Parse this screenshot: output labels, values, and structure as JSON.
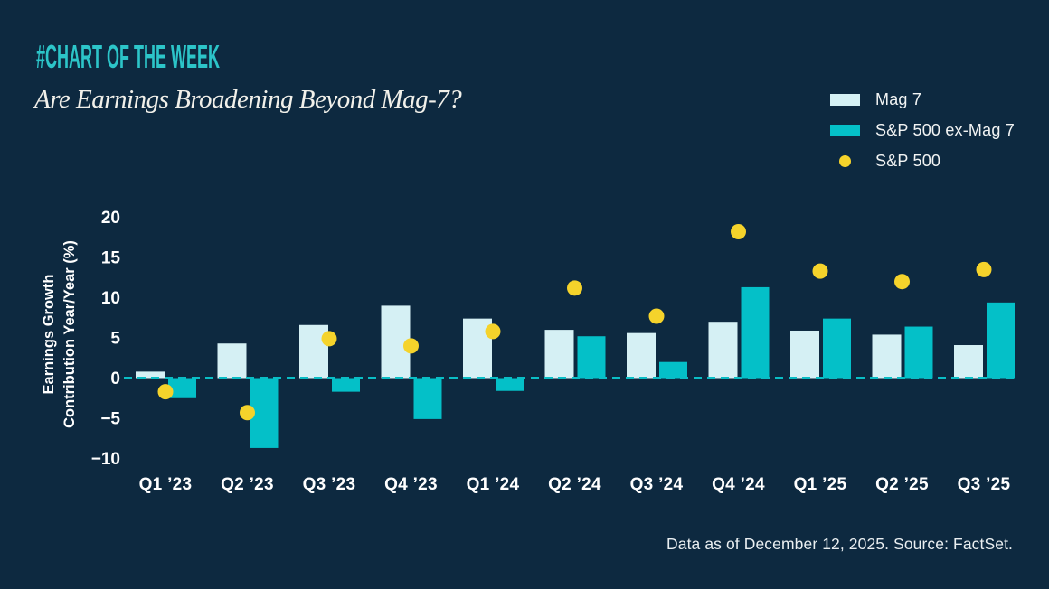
{
  "page": {
    "background": "#0D2940",
    "accent": "#2CC5C9"
  },
  "header": {
    "kicker": "#CHART OF THE WEEK",
    "title": "Are Earnings Broadening Beyond Mag-7?"
  },
  "legend": {
    "position": "top-right",
    "items": [
      {
        "label": "Mag 7",
        "swatch": "rect",
        "color": "#D5F0F4"
      },
      {
        "label": "S&P 500 ex-Mag 7",
        "swatch": "rect",
        "color": "#04C0C8"
      },
      {
        "label": "S&P 500",
        "swatch": "dot",
        "color": "#F5D32B"
      }
    ]
  },
  "chart_data": {
    "type": "bar",
    "categories": [
      "Q1 ’23",
      "Q2 ’23",
      "Q3 ’23",
      "Q4 ’23",
      "Q1 ’24",
      "Q2 ’24",
      "Q3 ’24",
      "Q4 ’24",
      "Q1 ’25",
      "Q2 ’25",
      "Q3 ’25"
    ],
    "series": [
      {
        "name": "Mag 7",
        "type": "bar",
        "color": "#D5F0F4",
        "values": [
          0.8,
          4.3,
          6.6,
          9.0,
          7.4,
          6.0,
          5.6,
          7.0,
          5.9,
          5.4,
          4.1
        ]
      },
      {
        "name": "S&P 500 ex-Mag 7",
        "type": "bar",
        "color": "#04C0C8",
        "values": [
          -2.5,
          -8.7,
          -1.7,
          -5.1,
          -1.6,
          5.2,
          2.0,
          11.3,
          7.4,
          6.4,
          9.4
        ]
      },
      {
        "name": "S&P 500",
        "type": "scatter",
        "color": "#F5D32B",
        "values": [
          -1.7,
          -4.3,
          4.9,
          4.0,
          5.8,
          11.2,
          7.7,
          18.2,
          13.3,
          12.0,
          13.5
        ]
      }
    ],
    "ylabel_lines": [
      "Earnings Growth",
      "Contribution Year/Year (%)"
    ],
    "yticks": [
      20,
      15,
      10,
      5,
      0,
      -5,
      -10
    ],
    "ylim": [
      -12.5,
      22
    ],
    "grid": false,
    "zero_line": {
      "style": "dashed",
      "color": "#0ABDC5"
    },
    "text_color": "#FFFFFF",
    "legend_position": "top-right"
  },
  "footer": {
    "source": "Data as of December 12, 2025. Source: FactSet."
  }
}
